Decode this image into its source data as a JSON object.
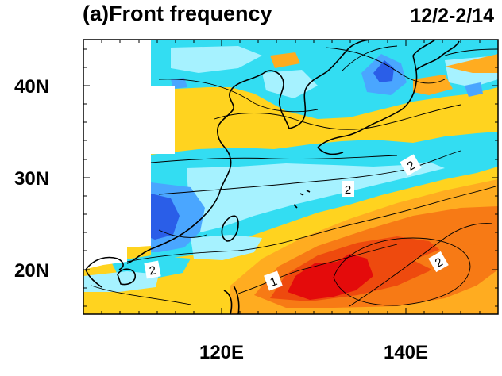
{
  "title": "(a)Front frequency",
  "period": "12/2-2/14",
  "map": {
    "lon_range": [
      105,
      150
    ],
    "lat_range": [
      15,
      46
    ],
    "lat_ticks": [
      {
        "value": 40,
        "label": "40N"
      },
      {
        "value": 30,
        "label": "30N"
      },
      {
        "value": 20,
        "label": "20N"
      }
    ],
    "lon_ticks": [
      {
        "value": 120,
        "label": "120E"
      },
      {
        "value": 140,
        "label": "140E"
      }
    ],
    "contour_labels": [
      "2",
      "2",
      "2",
      "1",
      "2"
    ],
    "fill_colors": {
      "blue_dark": "#2a5ee8",
      "blue": "#4aa6ff",
      "cyan": "#33ddf2",
      "light_cyan": "#a6f2ff",
      "yellow": "#ffd31f",
      "light_orange": "#ffac20",
      "orange": "#f77a15",
      "red_orange": "#ee4a0e",
      "red": "#e40b0b"
    }
  }
}
